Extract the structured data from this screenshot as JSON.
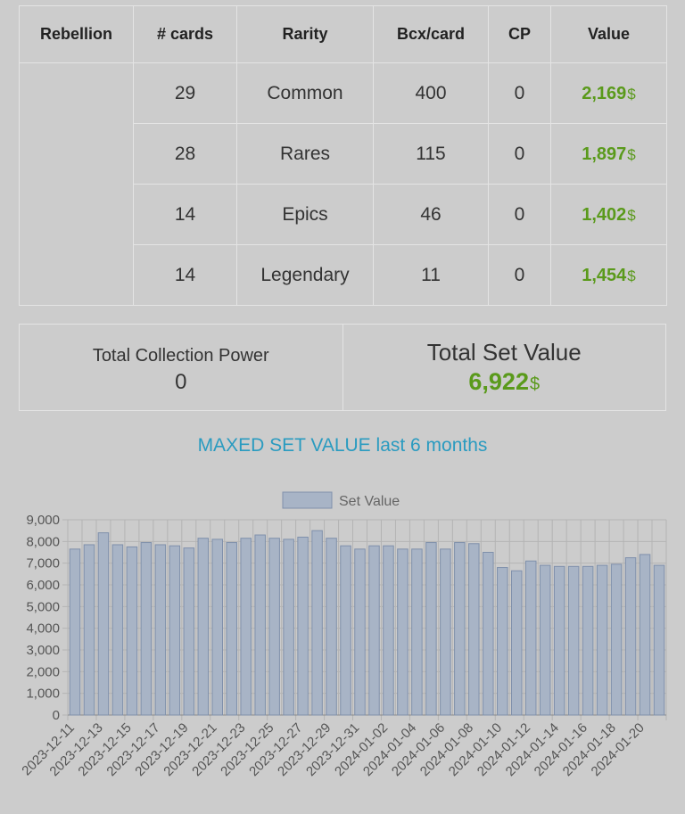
{
  "table": {
    "headers": [
      "Rebellion",
      "# cards",
      "Rarity",
      "Bcx/card",
      "CP",
      "Value"
    ],
    "rows": [
      {
        "cards": "29",
        "rarity": "Common",
        "bcx": "400",
        "cp": "0",
        "value": "2,169",
        "currency": "$"
      },
      {
        "cards": "28",
        "rarity": "Rares",
        "bcx": "115",
        "cp": "0",
        "value": "1,897",
        "currency": "$"
      },
      {
        "cards": "14",
        "rarity": "Epics",
        "bcx": "46",
        "cp": "0",
        "value": "1,402",
        "currency": "$"
      },
      {
        "cards": "14",
        "rarity": "Legendary",
        "bcx": "11",
        "cp": "0",
        "value": "1,454",
        "currency": "$"
      }
    ]
  },
  "totals": {
    "cp_label": "Total Collection Power",
    "cp_value": "0",
    "set_label": "Total Set Value",
    "set_value": "6,922",
    "currency": "$"
  },
  "chart_heading": {
    "highlight": "MAXED SET VALUE",
    "rest": " last 6 months"
  },
  "colors": {
    "value_green": "#5a9a1b",
    "heading_blue": "#2a9bc0",
    "bar_fill": "#a8b4c6",
    "bar_stroke": "#7f90ab"
  },
  "chart_data": {
    "type": "bar",
    "legend": "top",
    "grid": true,
    "ylim": [
      0,
      9000
    ],
    "yticks": [
      0,
      1000,
      2000,
      3000,
      4000,
      5000,
      6000,
      7000,
      8000,
      9000
    ],
    "x": [
      "2023-12-11",
      "2023-12-12",
      "2023-12-13",
      "2023-12-14",
      "2023-12-15",
      "2023-12-16",
      "2023-12-17",
      "2023-12-18",
      "2023-12-19",
      "2023-12-20",
      "2023-12-21",
      "2023-12-22",
      "2023-12-23",
      "2023-12-24",
      "2023-12-25",
      "2023-12-26",
      "2023-12-27",
      "2023-12-28",
      "2023-12-29",
      "2023-12-30",
      "2023-12-31",
      "2024-01-01",
      "2024-01-02",
      "2024-01-03",
      "2024-01-04",
      "2024-01-05",
      "2024-01-06",
      "2024-01-07",
      "2024-01-08",
      "2024-01-09",
      "2024-01-10",
      "2024-01-11",
      "2024-01-12",
      "2024-01-13",
      "2024-01-14",
      "2024-01-15",
      "2024-01-16",
      "2024-01-17",
      "2024-01-18",
      "2024-01-19",
      "2024-01-20",
      "2024-01-21"
    ],
    "tick_labels": [
      "2023-12-11",
      "2023-12-13",
      "2023-12-15",
      "2023-12-17",
      "2023-12-19",
      "2023-12-21",
      "2023-12-23",
      "2023-12-25",
      "2023-12-27",
      "2023-12-29",
      "2023-12-31",
      "2024-01-02",
      "2024-01-04",
      "2024-01-06",
      "2024-01-08",
      "2024-01-10",
      "2024-01-12",
      "2024-01-14",
      "2024-01-16",
      "2024-01-18",
      "2024-01-20"
    ],
    "series": [
      {
        "name": "Set Value",
        "values": [
          7650,
          7850,
          8400,
          7850,
          7750,
          7950,
          7850,
          7800,
          7700,
          8150,
          8100,
          7950,
          8150,
          8300,
          8150,
          8100,
          8200,
          8500,
          8150,
          7800,
          7650,
          7800,
          7800,
          7650,
          7650,
          7950,
          7650,
          7950,
          7900,
          7500,
          6800,
          6650,
          7100,
          6900,
          6850,
          6850,
          6850,
          6900,
          6950,
          7250,
          7400,
          6900
        ]
      }
    ]
  }
}
